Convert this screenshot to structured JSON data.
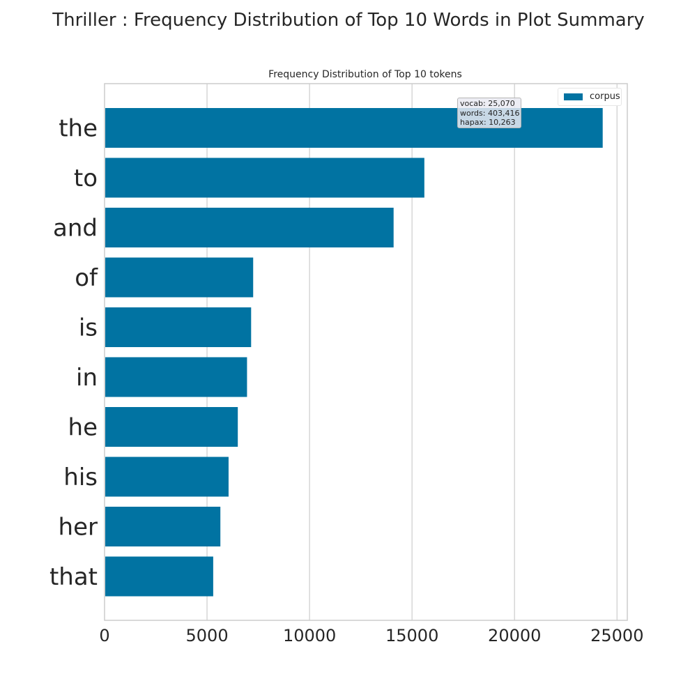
{
  "figure": {
    "suptitle": "Thriller : Frequency Distribution of Top 10 Words in Plot Summary"
  },
  "chart_data": {
    "type": "bar",
    "orientation": "horizontal",
    "title": "Frequency Distribution of Top 10 tokens",
    "xlabel": "",
    "ylabel": "",
    "categories": [
      "the",
      "to",
      "and",
      "of",
      "is",
      "in",
      "he",
      "his",
      "her",
      "that"
    ],
    "series": [
      {
        "name": "corpus",
        "values": [
          24300,
          15600,
          14100,
          7250,
          7150,
          6950,
          6500,
          6050,
          5650,
          5300
        ]
      }
    ],
    "xlim": [
      0,
      25500
    ],
    "xticks": [
      "0",
      "5000",
      "10000",
      "15000",
      "20000",
      "25000"
    ],
    "grid": true,
    "legend_position": "top-right",
    "bar_color": "#0173a2",
    "annotation": {
      "vocab": "vocab: 25,070",
      "words": "words: 403,416",
      "hapax": "hapax: 10,263"
    }
  }
}
